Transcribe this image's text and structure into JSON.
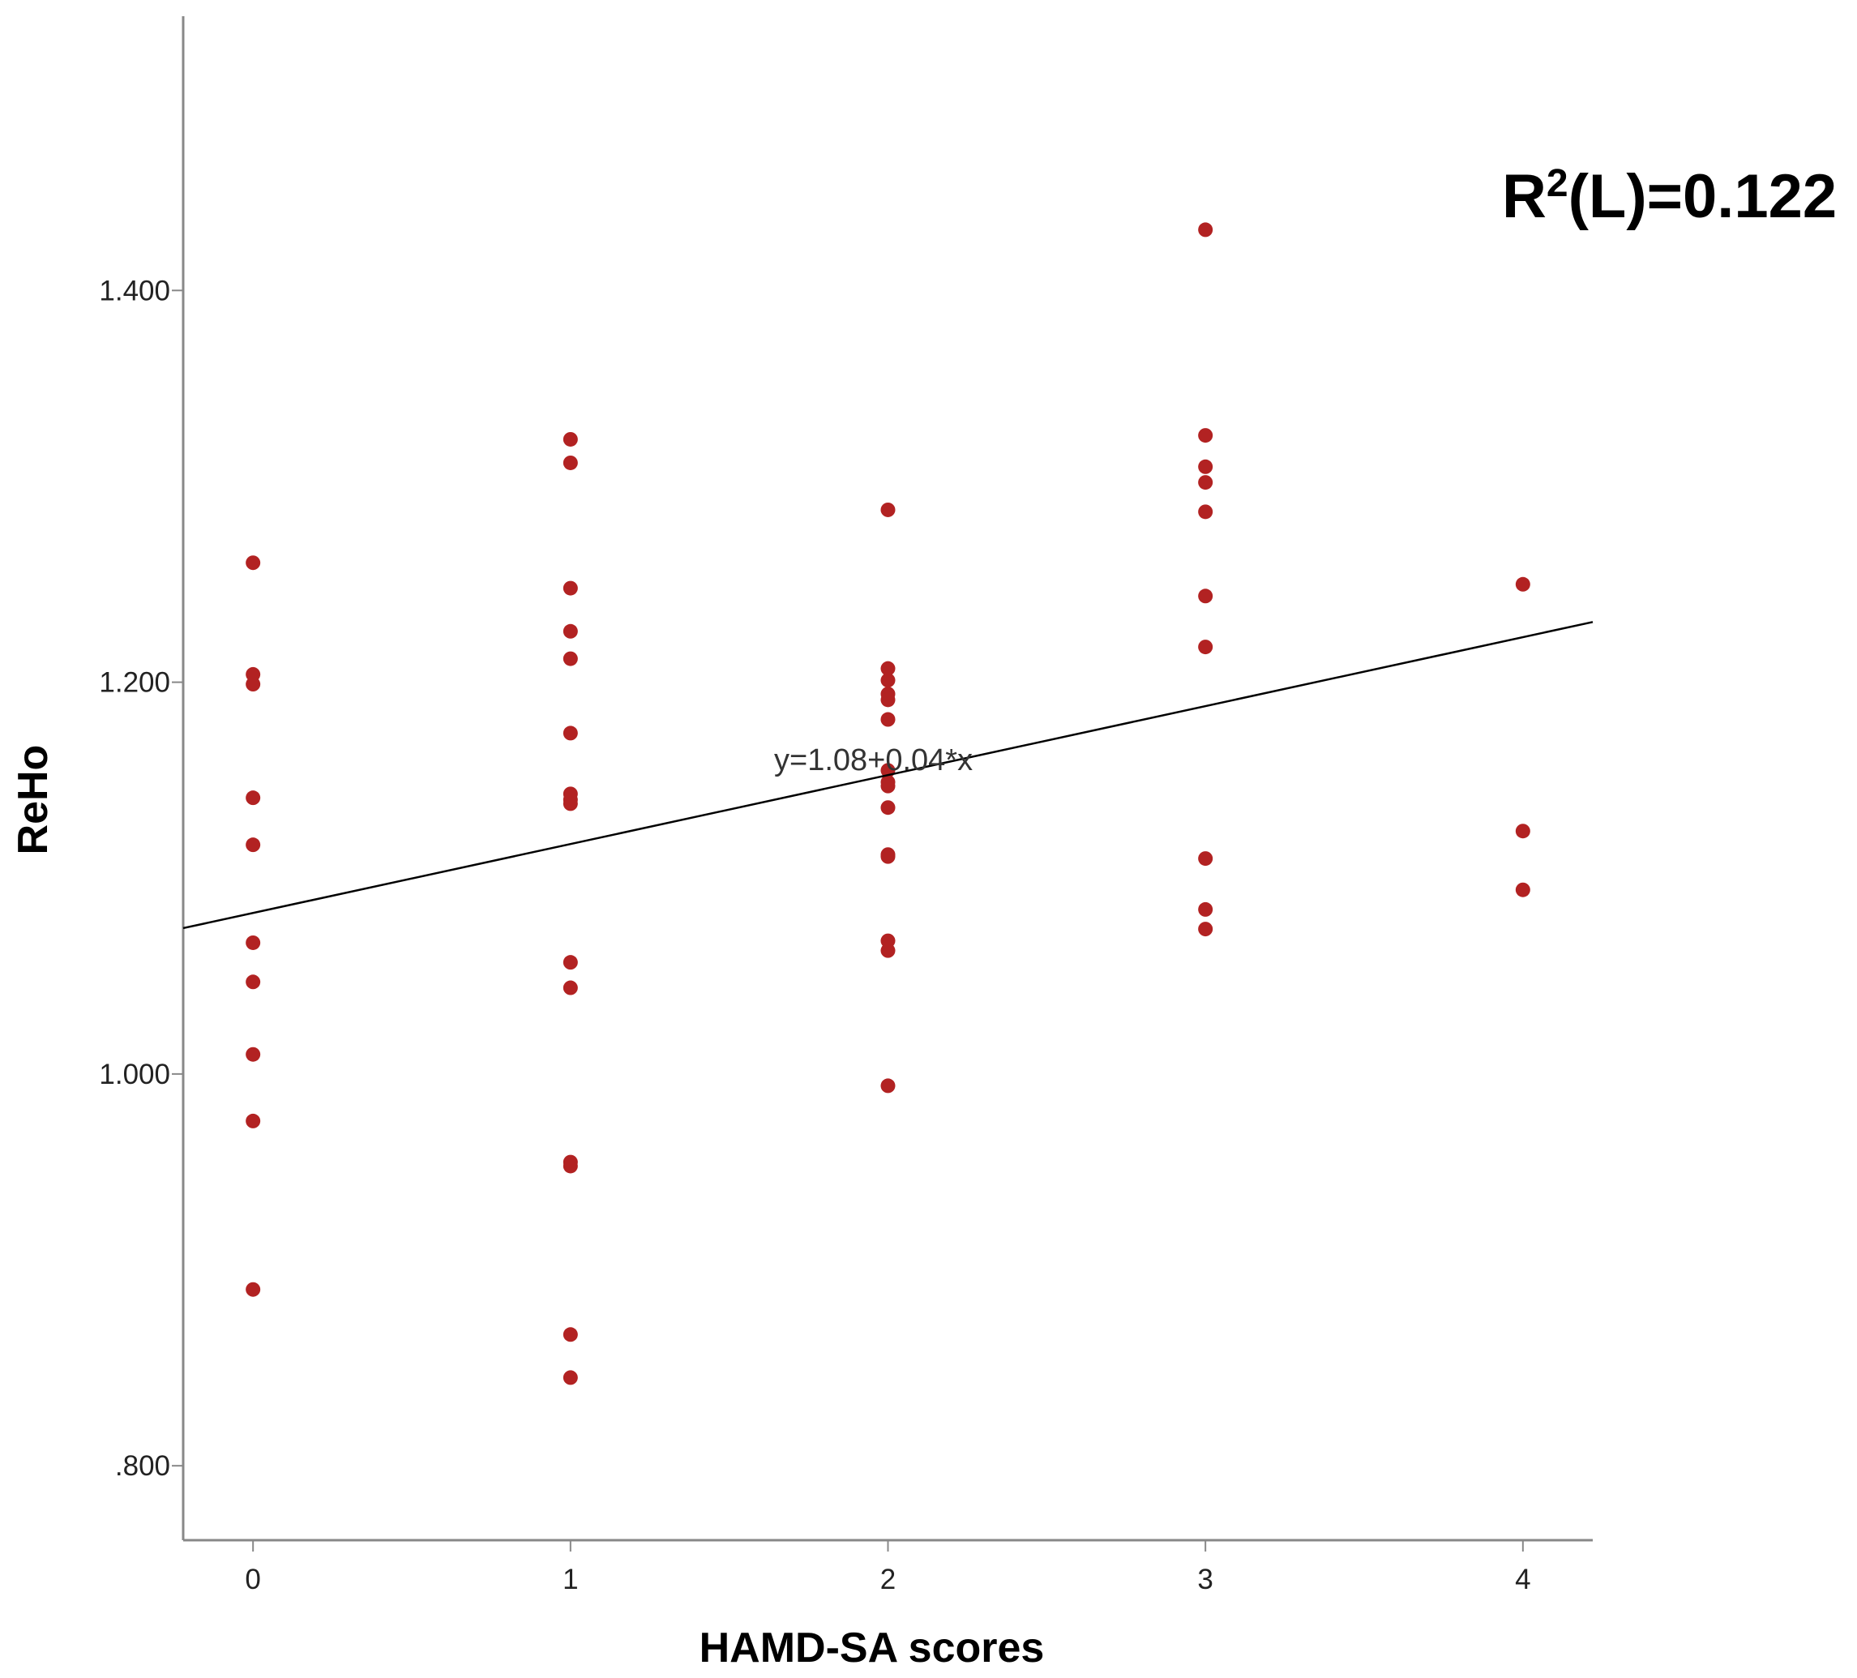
{
  "chart_data": {
    "type": "scatter",
    "title": "",
    "xlabel": "HAMD-SA scores",
    "ylabel": "ReHo",
    "xlim": [
      -0.22,
      4.22
    ],
    "ylim": [
      0.762,
      1.54
    ],
    "x_ticks": [
      0,
      1,
      2,
      3,
      4
    ],
    "x_tick_labels": [
      "0",
      "1",
      "2",
      "3",
      "4"
    ],
    "y_ticks": [
      0.8,
      1.0,
      1.2,
      1.4
    ],
    "y_tick_labels": [
      ".800",
      "1.000",
      "1.200",
      "1.400"
    ],
    "grid": false,
    "colors": {
      "points": "#b22222",
      "fit_line": "#000000",
      "axes": "#888888"
    },
    "series": [
      {
        "points": [
          {
            "x": 0,
            "y": 1.261
          },
          {
            "x": 0,
            "y": 1.204
          },
          {
            "x": 0,
            "y": 1.199
          },
          {
            "x": 0,
            "y": 1.141
          },
          {
            "x": 0,
            "y": 1.117
          },
          {
            "x": 0,
            "y": 1.067
          },
          {
            "x": 0,
            "y": 1.047
          },
          {
            "x": 0,
            "y": 1.01
          },
          {
            "x": 0,
            "y": 0.976
          },
          {
            "x": 0,
            "y": 0.89
          },
          {
            "x": 1,
            "y": 1.324
          },
          {
            "x": 1,
            "y": 1.312
          },
          {
            "x": 1,
            "y": 1.248
          },
          {
            "x": 1,
            "y": 1.226
          },
          {
            "x": 1,
            "y": 1.212
          },
          {
            "x": 1,
            "y": 1.174
          },
          {
            "x": 1,
            "y": 1.143
          },
          {
            "x": 1,
            "y": 1.14
          },
          {
            "x": 1,
            "y": 1.138
          },
          {
            "x": 1,
            "y": 1.057
          },
          {
            "x": 1,
            "y": 1.044
          },
          {
            "x": 1,
            "y": 0.955
          },
          {
            "x": 1,
            "y": 0.953
          },
          {
            "x": 1,
            "y": 0.867
          },
          {
            "x": 1,
            "y": 0.845
          },
          {
            "x": 2,
            "y": 1.288
          },
          {
            "x": 2,
            "y": 1.207
          },
          {
            "x": 2,
            "y": 1.201
          },
          {
            "x": 2,
            "y": 1.194
          },
          {
            "x": 2,
            "y": 1.191
          },
          {
            "x": 2,
            "y": 1.181
          },
          {
            "x": 2,
            "y": 1.155
          },
          {
            "x": 2,
            "y": 1.149
          },
          {
            "x": 2,
            "y": 1.147
          },
          {
            "x": 2,
            "y": 1.136
          },
          {
            "x": 2,
            "y": 1.112
          },
          {
            "x": 2,
            "y": 1.111
          },
          {
            "x": 2,
            "y": 1.068
          },
          {
            "x": 2,
            "y": 1.063
          },
          {
            "x": 2,
            "y": 0.994
          },
          {
            "x": 3,
            "y": 1.431
          },
          {
            "x": 3,
            "y": 1.326
          },
          {
            "x": 3,
            "y": 1.31
          },
          {
            "x": 3,
            "y": 1.302
          },
          {
            "x": 3,
            "y": 1.287
          },
          {
            "x": 3,
            "y": 1.244
          },
          {
            "x": 3,
            "y": 1.218
          },
          {
            "x": 3,
            "y": 1.11
          },
          {
            "x": 3,
            "y": 1.084
          },
          {
            "x": 3,
            "y": 1.074
          },
          {
            "x": 4,
            "y": 1.25
          },
          {
            "x": 4,
            "y": 1.124
          },
          {
            "x": 4,
            "y": 1.094
          }
        ]
      }
    ],
    "fit_line": {
      "intercept": 1.0822,
      "slope": 0.0352,
      "label": "y=1.08+0.04*x"
    },
    "annotation": {
      "r2_prefix": "R",
      "r2_sup": "2",
      "r2_suffix": "(L)=0.122"
    }
  }
}
